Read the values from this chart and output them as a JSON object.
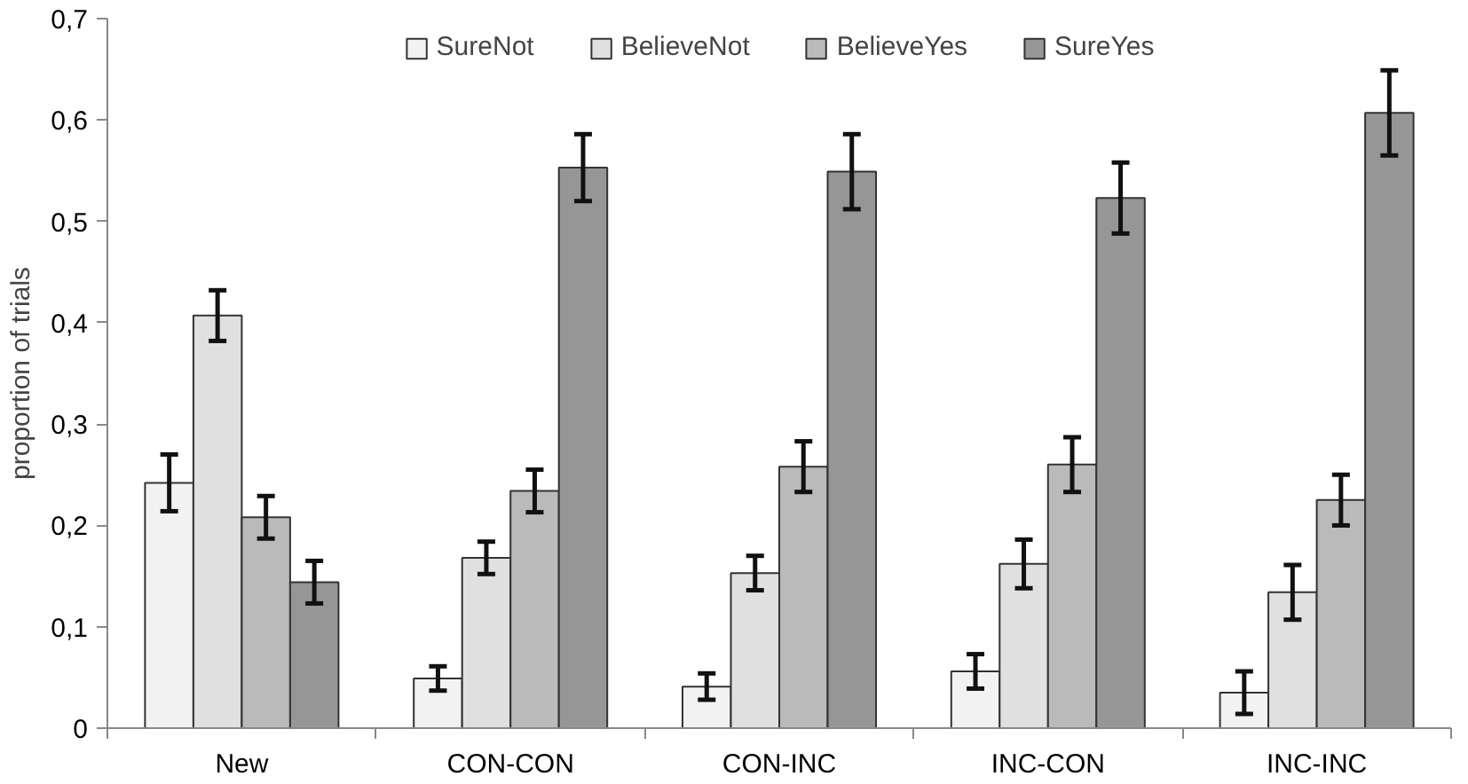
{
  "chart_data": {
    "type": "bar",
    "ylabel": "proportion of trials",
    "categories": [
      "New",
      "CON-CON",
      "CON-INC",
      "INC-CON",
      "INC-INC"
    ],
    "series": [
      {
        "name": "SureNot",
        "color": "#f2f2f2",
        "values": [
          0.242,
          0.049,
          0.041,
          0.056,
          0.035
        ],
        "errors": [
          0.028,
          0.012,
          0.013,
          0.017,
          0.021
        ]
      },
      {
        "name": "BelieveNot",
        "color": "#e0e0e0",
        "values": [
          0.407,
          0.168,
          0.153,
          0.162,
          0.134
        ],
        "errors": [
          0.025,
          0.016,
          0.017,
          0.024,
          0.027
        ]
      },
      {
        "name": "BelieveYes",
        "color": "#bababa",
        "values": [
          0.208,
          0.234,
          0.258,
          0.26,
          0.225
        ],
        "errors": [
          0.021,
          0.021,
          0.025,
          0.027,
          0.025
        ]
      },
      {
        "name": "SureYes",
        "color": "#969696",
        "values": [
          0.144,
          0.553,
          0.549,
          0.523,
          0.607
        ],
        "errors": [
          0.021,
          0.033,
          0.037,
          0.035,
          0.042
        ]
      }
    ],
    "ylim": [
      0,
      0.7
    ],
    "yticks": [
      0,
      {
        "value": 0.1,
        "label": "0,1"
      },
      {
        "value": 0.2,
        "label": "0,2"
      },
      {
        "value": 0.3,
        "label": "0,3"
      },
      {
        "value": 0.4,
        "label": "0,4"
      },
      {
        "value": 0.5,
        "label": "0,5"
      },
      {
        "value": 0.6,
        "label": "0,6"
      },
      {
        "value": 0.7,
        "label": "0,7"
      }
    ],
    "grid": false,
    "legend": "top"
  }
}
